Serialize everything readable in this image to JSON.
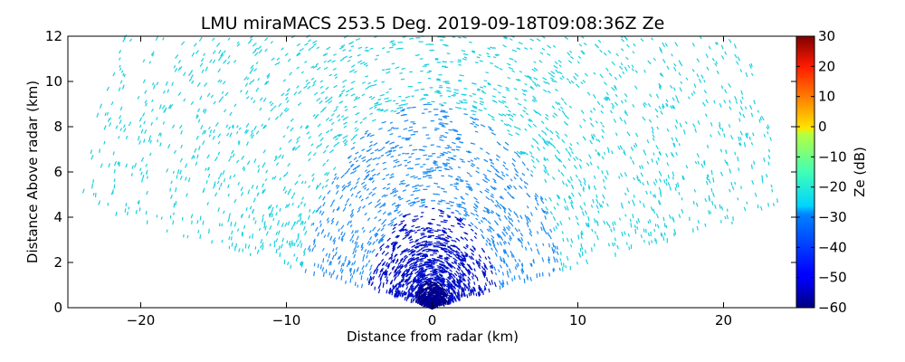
{
  "chart_data": {
    "type": "heatmap",
    "subtype": "radar RHI scan",
    "title": "LMU miraMACS 253.5 Deg. 2019-09-18T09:08:36Z  Ze",
    "xlabel": "Distance from radar (km)",
    "ylabel": "Distance Above radar  (km)",
    "xlim": [
      -25,
      25
    ],
    "ylim": [
      0,
      12
    ],
    "xticks": [
      -20,
      -10,
      0,
      10,
      20
    ],
    "xtick_labels": [
      "−20",
      "−10",
      "0",
      "10",
      "20"
    ],
    "yticks": [
      0,
      2,
      4,
      6,
      8,
      10,
      12
    ],
    "ytick_labels": [
      "0",
      "2",
      "4",
      "6",
      "8",
      "10",
      "12"
    ],
    "grid": false,
    "colorbar": {
      "label": "Ze (dB)",
      "range": [
        -60,
        30
      ],
      "ticks": [
        -60,
        -50,
        -40,
        -30,
        -20,
        -10,
        0,
        10,
        20,
        30
      ],
      "tick_labels": [
        "−60",
        "−50",
        "−40",
        "−30",
        "−20",
        "−10",
        "0",
        "10",
        "20",
        "30"
      ],
      "colormap": "jet"
    },
    "scan": {
      "range_max_km": 24.5,
      "elevation_min_deg": 10.3,
      "elevation_max_deg": 169.5
    },
    "field_description": "Noise-dominated reflectivity: about -30 dB at far range, decreasing to about -55 dB near the radar.",
    "colors": {
      "far_range": "#19d0e0",
      "mid_range": "#1f8cf0",
      "near_range": "#0010c8",
      "nearest": "#000090"
    }
  }
}
